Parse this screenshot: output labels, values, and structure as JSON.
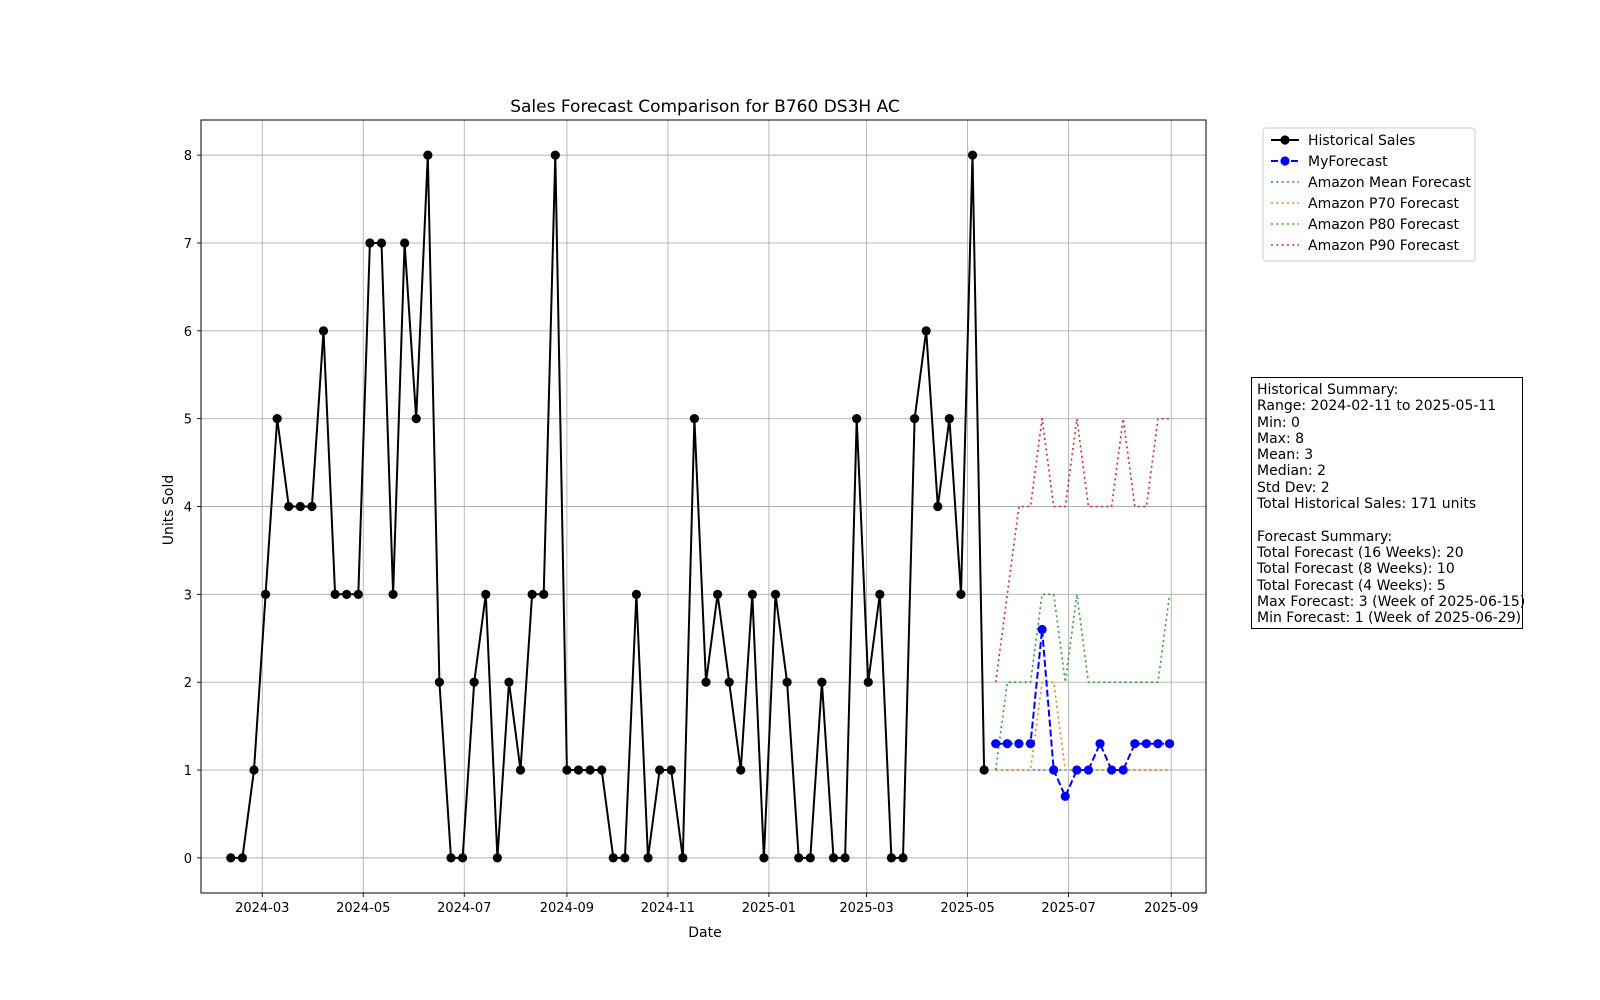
{
  "chart_data": {
    "type": "line",
    "title": "Sales Forecast Comparison for B760 DS3H AC",
    "xlabel": "Date",
    "ylabel": "Units Sold",
    "x_ticks": [
      "2024-03",
      "2024-05",
      "2024-07",
      "2024-09",
      "2024-11",
      "2025-01",
      "2025-03",
      "2025-05",
      "2025-07",
      "2025-09"
    ],
    "x_range": [
      "2024-01-24",
      "2025-09-22"
    ],
    "y_ticks": [
      0,
      1,
      2,
      3,
      4,
      5,
      6,
      7,
      8
    ],
    "ylim": [
      -0.4,
      8.4
    ],
    "grid": true,
    "legend_position": "outside-top-right",
    "series": [
      {
        "name": "Historical Sales",
        "style": "solid-marker",
        "color": "#000000",
        "start_date": "2024-02-11",
        "step_days": 7,
        "values": [
          0,
          0,
          1,
          3,
          5,
          4,
          4,
          4,
          6,
          3,
          3,
          3,
          7,
          7,
          3,
          7,
          5,
          8,
          2,
          0,
          0,
          2,
          3,
          0,
          2,
          1,
          3,
          3,
          8,
          1,
          1,
          1,
          1,
          0,
          0,
          3,
          0,
          1,
          1,
          0,
          5,
          2,
          3,
          2,
          1,
          3,
          0,
          3,
          2,
          0,
          0,
          2,
          0,
          0,
          5,
          2,
          3,
          0,
          0,
          5,
          6,
          4,
          5,
          3,
          8,
          1
        ]
      },
      {
        "name": "MyForecast",
        "style": "dashed-marker",
        "color": "#0000ff",
        "start_date": "2025-05-18",
        "step_days": 7,
        "values": [
          1.3,
          1.3,
          1.3,
          1.3,
          2.6,
          1.0,
          0.7,
          1.0,
          1.0,
          1.3,
          1.0,
          1.0,
          1.3,
          1.3,
          1.3,
          1.3
        ]
      },
      {
        "name": "Amazon Mean Forecast",
        "style": "dotted",
        "color": "#1f77b4",
        "start_date": "2025-05-18",
        "step_days": 7,
        "values": [
          1,
          1,
          1,
          1,
          1,
          1,
          1,
          1,
          1,
          1,
          1,
          1,
          1,
          1,
          1,
          1
        ]
      },
      {
        "name": "Amazon P70 Forecast",
        "style": "dotted",
        "color": "#ff7f0e",
        "start_date": "2025-05-18",
        "step_days": 7,
        "values": [
          1,
          1,
          1,
          1,
          2,
          2,
          1,
          1,
          1,
          1,
          1,
          1,
          1,
          1,
          1,
          1
        ]
      },
      {
        "name": "Amazon P80 Forecast",
        "style": "dotted",
        "color": "#2ca02c",
        "start_date": "2025-05-18",
        "step_days": 7,
        "values": [
          1,
          2,
          2,
          2,
          3,
          3,
          2,
          3,
          2,
          2,
          2,
          2,
          2,
          2,
          2,
          3
        ]
      },
      {
        "name": "Amazon P90 Forecast",
        "style": "dotted",
        "color": "#d62728",
        "start_date": "2025-05-18",
        "step_days": 7,
        "values": [
          2,
          3,
          4,
          4,
          5,
          4,
          4,
          5,
          4,
          4,
          4,
          5,
          4,
          4,
          5,
          5
        ]
      }
    ]
  },
  "summary": {
    "lines": [
      "Historical Summary:",
      "Range: 2024-02-11 to 2025-05-11",
      "Min: 0",
      "Max: 8",
      "Mean: 3",
      "Median: 2",
      "Std Dev: 2",
      "Total Historical Sales: 171 units",
      "",
      "Forecast Summary:",
      "Total Forecast (16 Weeks): 20",
      "Total Forecast (8 Weeks): 10",
      "Total Forecast (4 Weeks): 5",
      "Max Forecast: 3 (Week of 2025-06-15)",
      "Min Forecast: 1 (Week of 2025-06-29)"
    ]
  }
}
